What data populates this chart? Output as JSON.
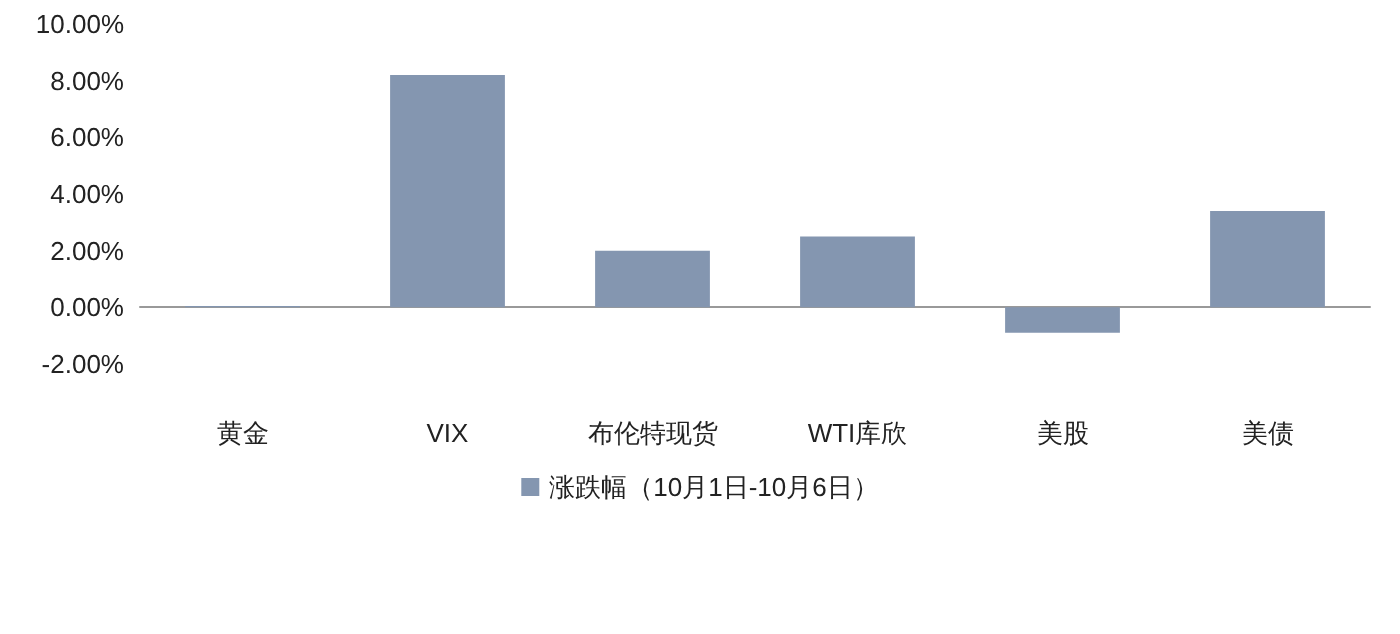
{
  "chart_data": {
    "type": "bar",
    "categories": [
      "黄金",
      "VIX",
      "布伦特现货",
      "WTI库欣",
      "美股",
      "美债"
    ],
    "series": [
      {
        "name": "涨跌幅（10月1日-10月6日）",
        "color": "#8496b0",
        "values": [
          0.05,
          8.2,
          2.0,
          2.5,
          -0.9,
          3.4
        ]
      }
    ],
    "ylim": [
      -2,
      10
    ],
    "yticks": [
      {
        "value": -2,
        "label": "-2.00%"
      },
      {
        "value": 0,
        "label": "0.00%"
      },
      {
        "value": 2,
        "label": "2.00%"
      },
      {
        "value": 4,
        "label": "4.00%"
      },
      {
        "value": 6,
        "label": "6.00%"
      },
      {
        "value": 8,
        "label": "8.00%"
      },
      {
        "value": 10,
        "label": "10.00%"
      }
    ],
    "legend": "bottom"
  }
}
